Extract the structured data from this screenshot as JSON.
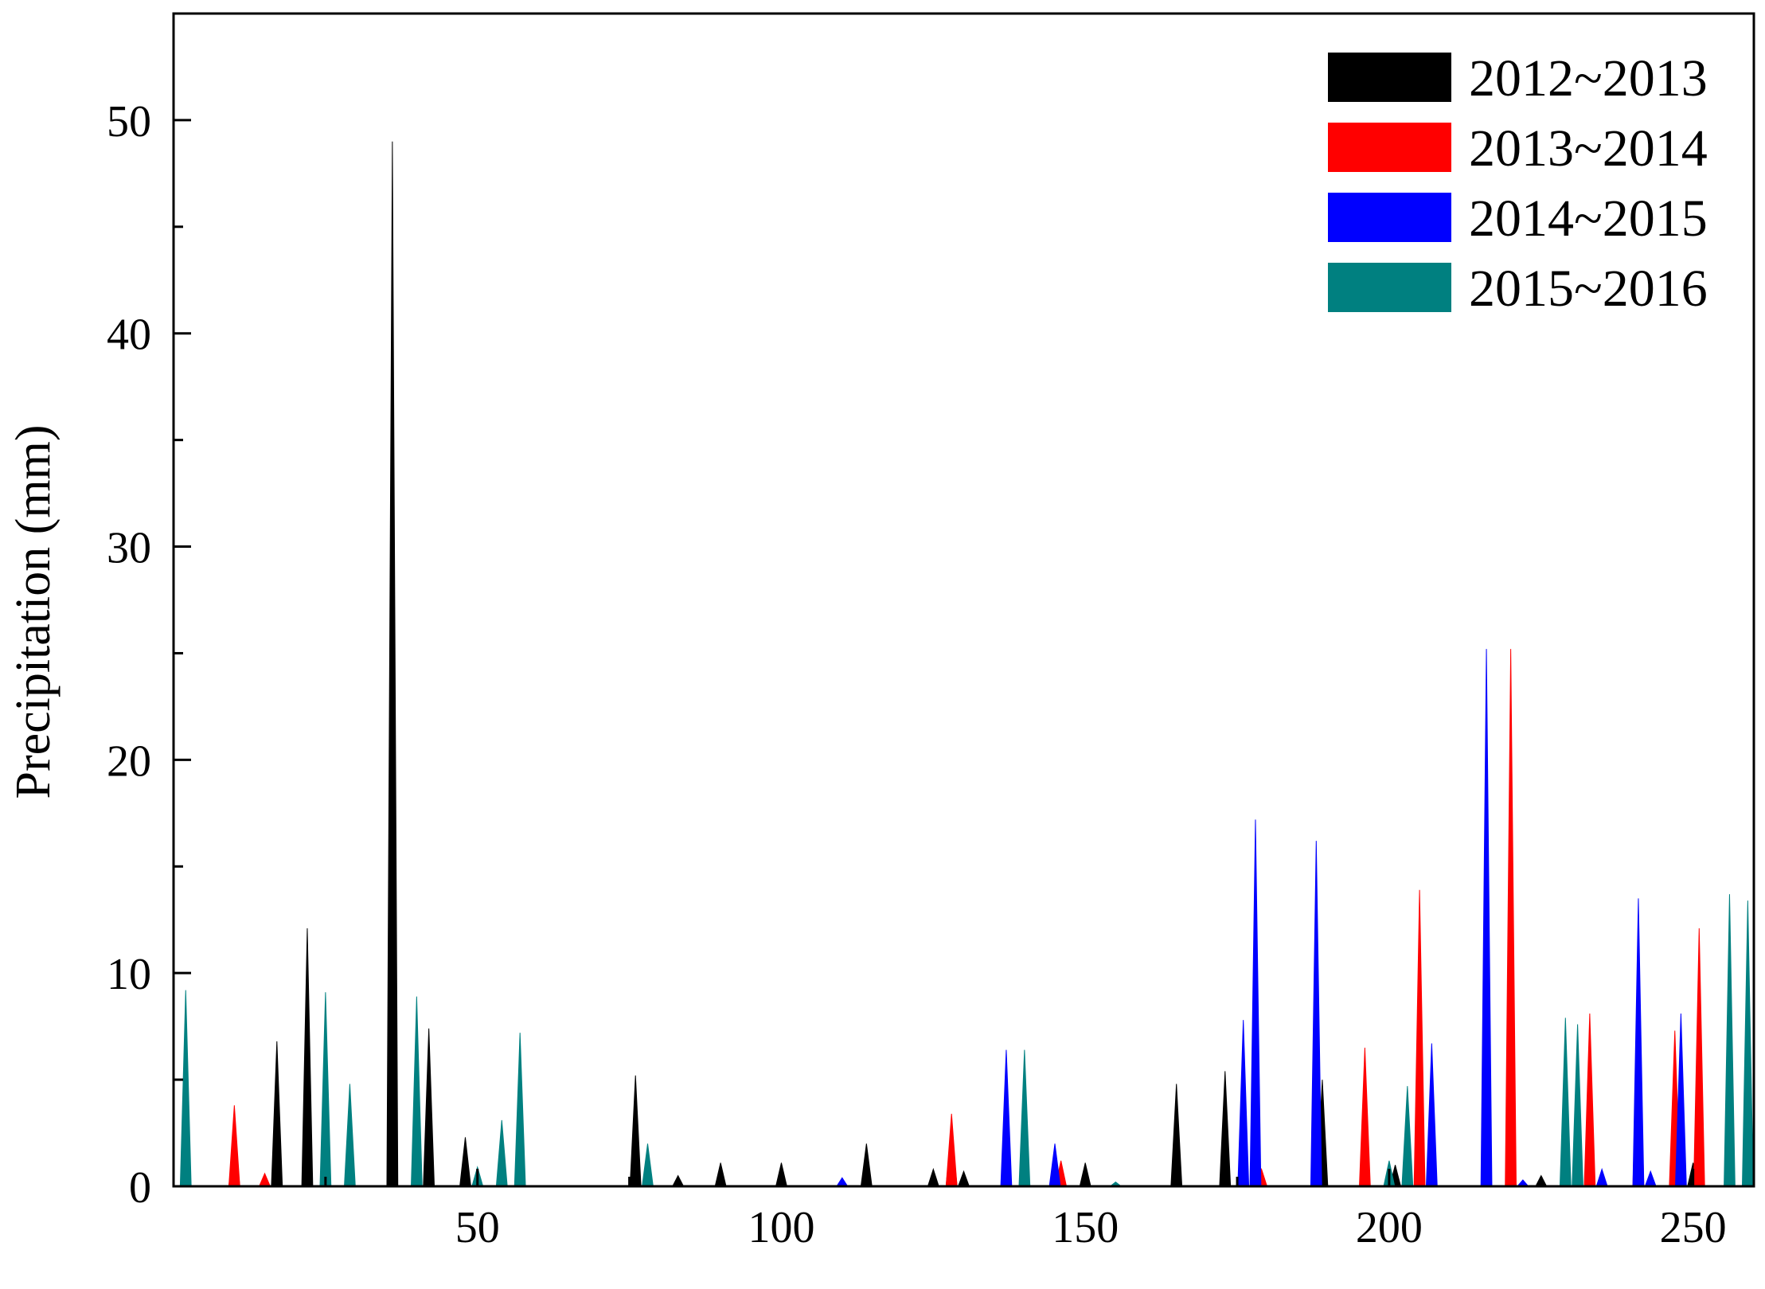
{
  "chart_data": {
    "type": "area",
    "title": "",
    "xlabel": "",
    "ylabel": "Precipitation (mm)",
    "xlim": [
      0,
      260
    ],
    "ylim": [
      0,
      55
    ],
    "x_ticks": [
      50,
      100,
      150,
      200,
      250
    ],
    "x_tick_labels": [
      "50",
      "100",
      "150",
      "200",
      "250"
    ],
    "y_ticks": [
      0,
      10,
      20,
      30,
      40,
      50
    ],
    "y_tick_labels": [
      "0",
      "10",
      "20",
      "30",
      "40",
      "50"
    ],
    "grid": false,
    "legend_position": "top-right",
    "series": [
      {
        "name": "2012~2013",
        "color": "#000000",
        "points": [
          [
            10,
            2.5
          ],
          [
            17,
            6.8
          ],
          [
            22,
            12.1
          ],
          [
            36,
            49.0
          ],
          [
            42,
            7.4
          ],
          [
            48,
            2.3
          ],
          [
            76,
            5.2
          ],
          [
            83,
            0.5
          ],
          [
            90,
            1.1
          ],
          [
            100,
            1.1
          ],
          [
            114,
            2.0
          ],
          [
            125,
            0.8
          ],
          [
            128,
            2.7
          ],
          [
            130,
            0.7
          ],
          [
            150,
            1.1
          ],
          [
            165,
            4.8
          ],
          [
            173,
            5.4
          ],
          [
            189,
            5.0
          ],
          [
            201,
            1.0
          ],
          [
            220,
            0.8
          ],
          [
            225,
            0.5
          ],
          [
            250,
            1.1
          ]
        ]
      },
      {
        "name": "2013~2014",
        "color": "#ff0000",
        "points": [
          [
            10,
            3.8
          ],
          [
            15,
            0.6
          ],
          [
            128,
            3.4
          ],
          [
            146,
            1.2
          ],
          [
            179,
            0.8
          ],
          [
            196,
            6.5
          ],
          [
            205,
            13.9
          ],
          [
            216,
            0.5
          ],
          [
            220,
            25.2
          ],
          [
            233,
            8.1
          ],
          [
            241,
            8.9
          ],
          [
            247,
            7.3
          ],
          [
            251,
            12.1
          ]
        ]
      },
      {
        "name": "2014~2015",
        "color": "#0000ff",
        "points": [
          [
            110,
            0.4
          ],
          [
            137,
            6.4
          ],
          [
            145,
            2.0
          ],
          [
            176,
            7.8
          ],
          [
            178,
            17.2
          ],
          [
            188,
            16.2
          ],
          [
            203,
            0.8
          ],
          [
            207,
            6.7
          ],
          [
            216,
            25.2
          ],
          [
            222,
            0.3
          ],
          [
            235,
            0.8
          ],
          [
            241,
            13.5
          ],
          [
            243,
            0.7
          ],
          [
            248,
            8.1
          ]
        ]
      },
      {
        "name": "2015~2016",
        "color": "#008080",
        "points": [
          [
            2,
            9.2
          ],
          [
            25,
            9.1
          ],
          [
            29,
            4.8
          ],
          [
            40,
            8.9
          ],
          [
            50,
            0.9
          ],
          [
            54,
            3.1
          ],
          [
            57,
            7.2
          ],
          [
            78,
            2.0
          ],
          [
            140,
            6.4
          ],
          [
            155,
            0.2
          ],
          [
            200,
            1.2
          ],
          [
            203,
            4.7
          ],
          [
            229,
            7.9
          ],
          [
            231,
            7.6
          ],
          [
            256,
            13.7
          ],
          [
            259,
            13.4
          ]
        ]
      }
    ]
  }
}
